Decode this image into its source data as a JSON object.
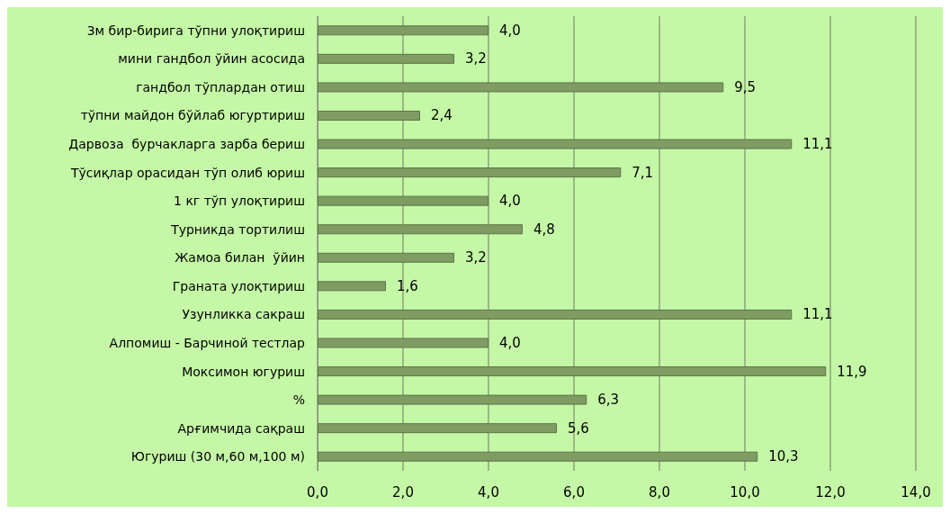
{
  "chart_data": {
    "type": "bar",
    "orientation": "horizontal",
    "categories": [
      "3м бир-бирига тўпни улоқтириш",
      "мини гандбол ўйин асосида",
      "гандбол тўплардан отиш",
      "тўпни майдон бўйлаб югуртириш",
      "Дарвоза  бурчакларга зарба бериш",
      "Тўсиқлар орасидан тўп олиб юриш",
      "1 кг тўп улоқтириш",
      "Турникда тортилиш",
      "Жамоа билан  ўйин",
      "Граната улоқтириш",
      "Узунликка сакраш",
      "Алпомиш - Барчиной тестлар",
      "Моксимон югуриш",
      "%",
      "Арғимчида сақраш",
      "Югуриш (30 м,60 м,100 м)"
    ],
    "values": [
      4.0,
      3.2,
      9.5,
      2.4,
      11.1,
      7.1,
      4.0,
      4.8,
      3.2,
      1.6,
      11.1,
      4.0,
      11.9,
      6.3,
      5.6,
      10.3
    ],
    "value_labels": [
      "4,0",
      "3,2",
      "9,5",
      "2,4",
      "11,1",
      "7,1",
      "4,0",
      "4,8",
      "3,2",
      "1,6",
      "11,1",
      "4,0",
      "11,9",
      "6,3",
      "5,6",
      "10,3"
    ],
    "color": "#7f9c62",
    "xlim": [
      0,
      14
    ],
    "xticks": [
      {
        "value": 0,
        "label": "0,0"
      },
      {
        "value": 2,
        "label": "2,0"
      },
      {
        "value": 4,
        "label": "4,0"
      },
      {
        "value": 6,
        "label": "6,0"
      },
      {
        "value": 8,
        "label": "8,0"
      },
      {
        "value": 10,
        "label": "10,0"
      },
      {
        "value": 12,
        "label": "12,0"
      },
      {
        "value": 14,
        "label": "14,0"
      }
    ],
    "grid": "x"
  }
}
